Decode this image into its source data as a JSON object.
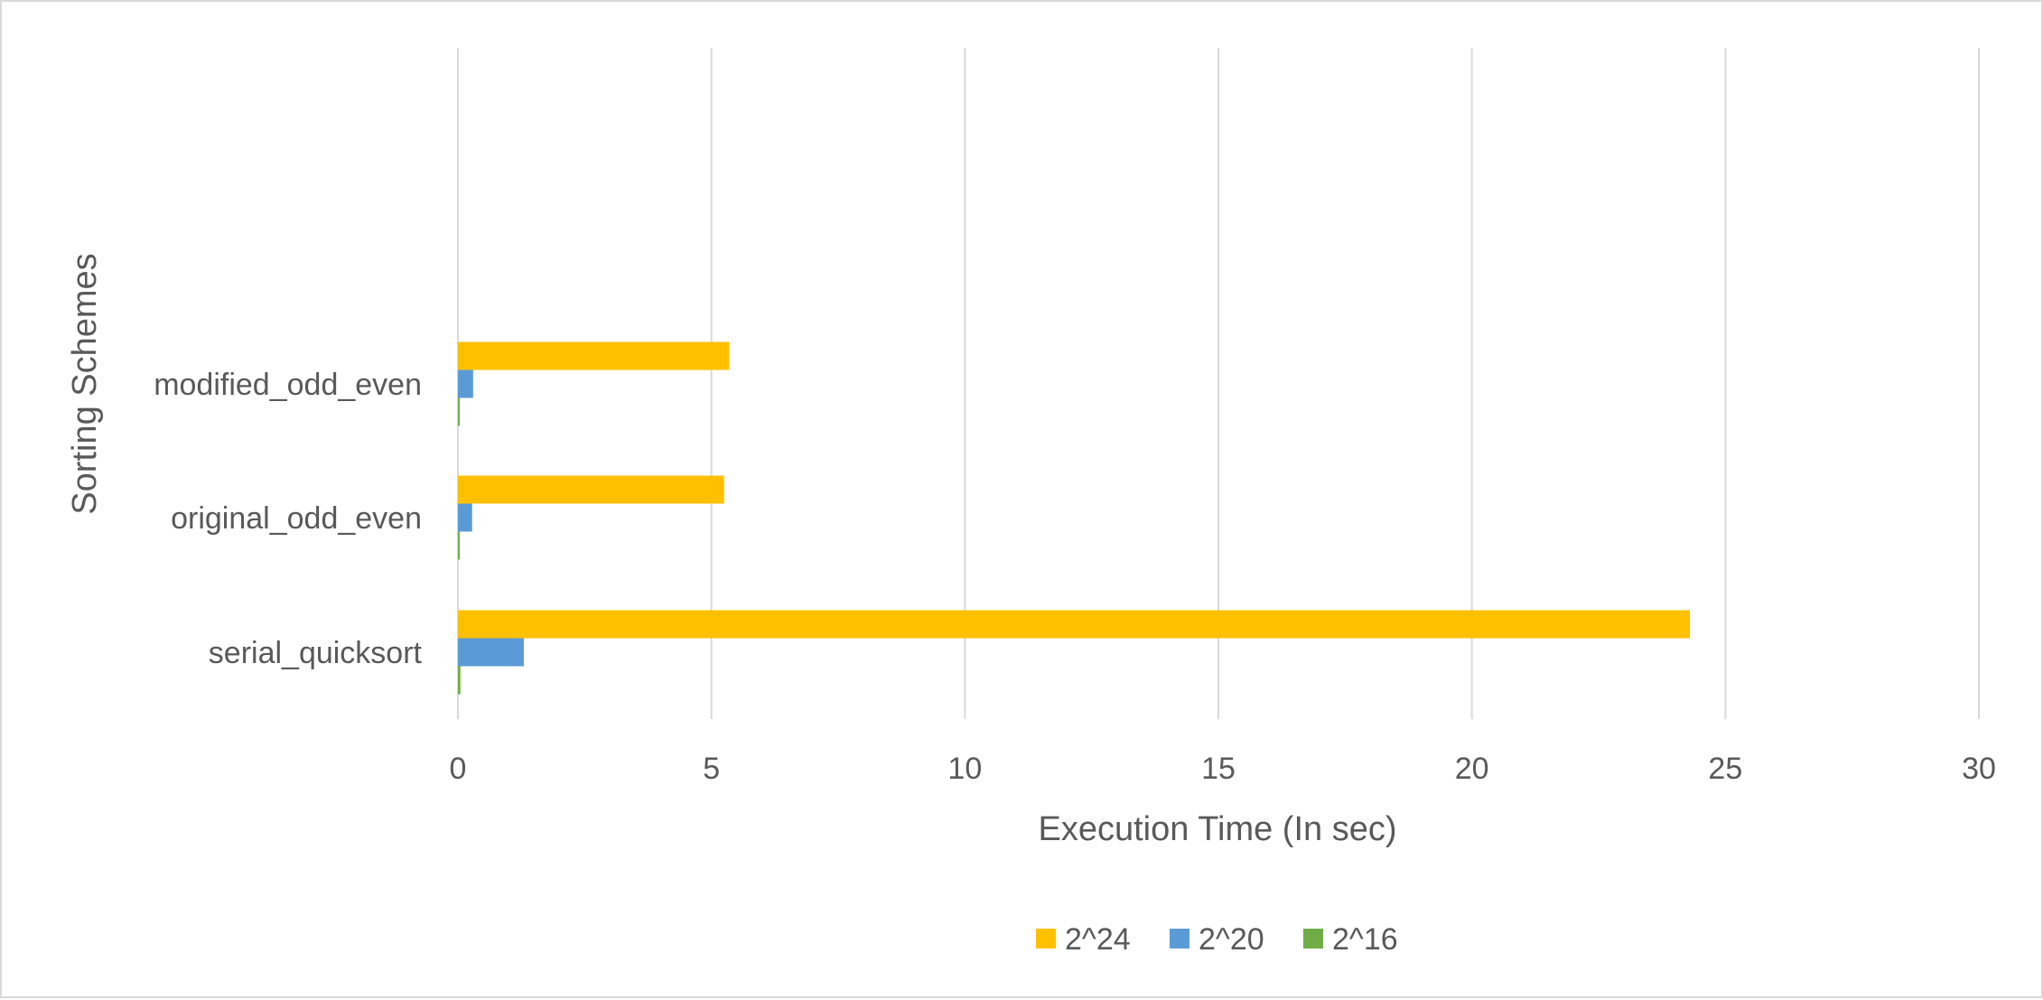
{
  "chart_data": {
    "type": "bar",
    "orientation": "horizontal",
    "categories": [
      "serial_quicksort",
      "original_odd_even",
      "modified_odd_even"
    ],
    "series": [
      {
        "name": "2^24",
        "color": "#FFC000",
        "values": [
          24.3,
          5.25,
          5.35
        ]
      },
      {
        "name": "2^20",
        "color": "#5B9BD5",
        "values": [
          1.3,
          0.28,
          0.3
        ]
      },
      {
        "name": "2^16",
        "color": "#70AD47",
        "values": [
          0.05,
          0.01,
          0.01
        ]
      }
    ],
    "xlabel": "Execution Time (In sec)",
    "ylabel": "Sorting Schemes",
    "xlim": [
      0,
      30
    ],
    "xticks": [
      0,
      5,
      10,
      15,
      20,
      25,
      30
    ],
    "grid": "vertical",
    "legend_position": "bottom"
  }
}
